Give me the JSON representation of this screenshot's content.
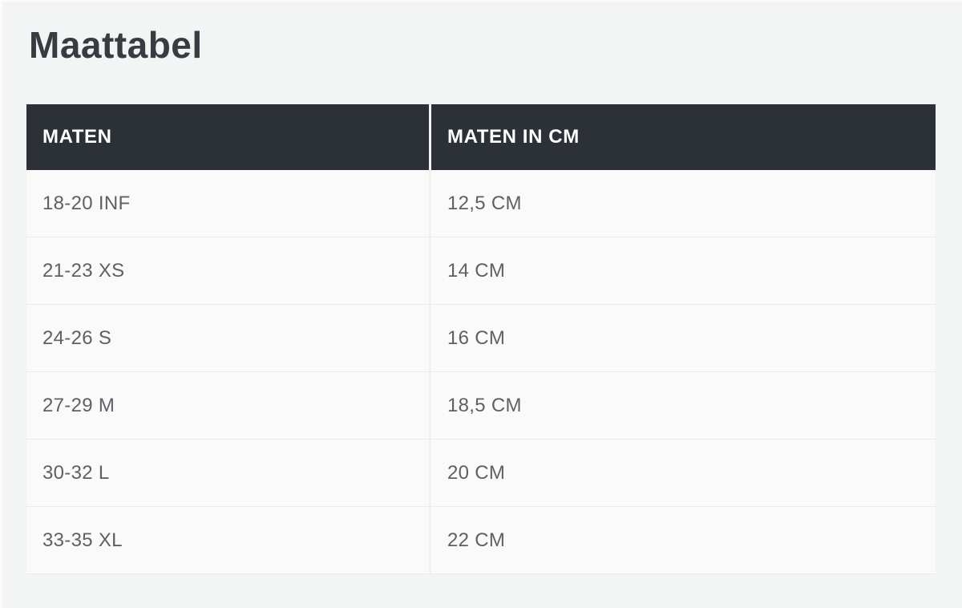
{
  "page": {
    "title": "Maattabel",
    "background_color": "#f3f4f4"
  },
  "colors": {
    "header_background": "#2b3137",
    "header_text": "#ffffff",
    "title_text": "#363c42",
    "cell_text": "#5d6165",
    "row_border": "#e9eaeb",
    "cell_background": "#fafafa"
  },
  "table": {
    "headers": [
      "MATEN",
      "MATEN IN CM"
    ],
    "rows": [
      {
        "maten": "18-20 INF",
        "maten_in_cm": "12,5 CM"
      },
      {
        "maten": "21-23 XS",
        "maten_in_cm": "14 CM"
      },
      {
        "maten": "24-26 S",
        "maten_in_cm": "16 CM"
      },
      {
        "maten": "27-29 M",
        "maten_in_cm": "18,5 CM"
      },
      {
        "maten": "30-32 L",
        "maten_in_cm": "20 CM"
      },
      {
        "maten": "33-35 XL",
        "maten_in_cm": "22 CM"
      }
    ]
  }
}
